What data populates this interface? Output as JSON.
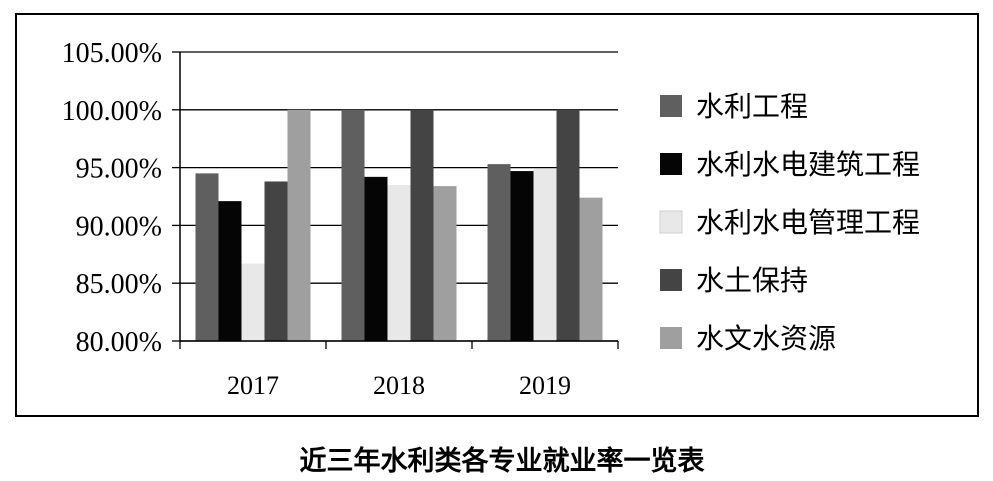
{
  "chart_data": {
    "type": "bar",
    "title": "",
    "caption": "近三年水利类各专业就业率一览表",
    "categories": [
      "2017",
      "2018",
      "2019"
    ],
    "ylim": [
      80,
      105
    ],
    "yticks": [
      "80.00%",
      "85.00%",
      "90.00%",
      "95.00%",
      "100.00%",
      "105.00%"
    ],
    "grid": true,
    "legend_position": "right",
    "series": [
      {
        "name": "水利工程",
        "color": "#5f5f5f",
        "values": [
          94.5,
          100.0,
          95.3
        ]
      },
      {
        "name": "水利水电建筑工程",
        "color": "#050505",
        "values": [
          92.1,
          94.2,
          94.7
        ]
      },
      {
        "name": "水利水电管理工程",
        "color": "#e8e8e8",
        "values": [
          86.7,
          93.5,
          94.9
        ]
      },
      {
        "name": "水土保持",
        "color": "#444444",
        "values": [
          93.8,
          100.0,
          100.0
        ]
      },
      {
        "name": "水文水资源",
        "color": "#9f9f9f",
        "values": [
          100.0,
          93.4,
          92.4
        ]
      }
    ]
  }
}
